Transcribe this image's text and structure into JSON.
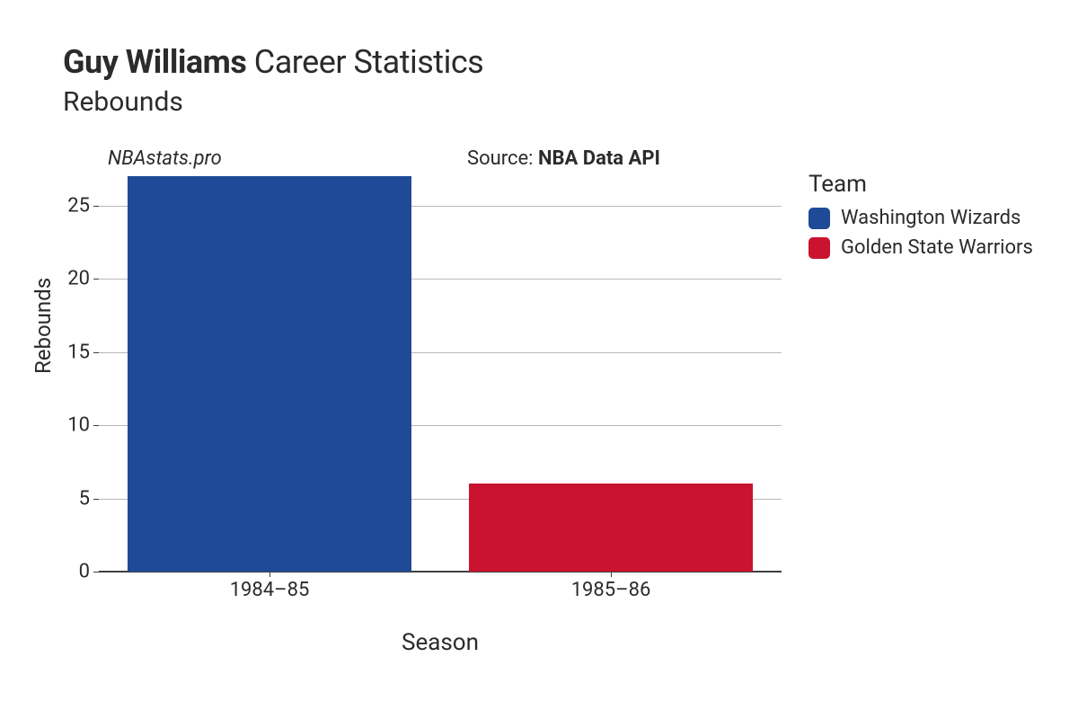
{
  "title": {
    "player": "Guy Williams",
    "suffix": "Career Statistics",
    "metric": "Rebounds"
  },
  "watermark": "NBAstats.pro",
  "source": {
    "prefix": "Source: ",
    "name": "NBA Data API"
  },
  "chart": {
    "type": "bar",
    "ylabel": "Rebounds",
    "xlabel": "Season",
    "ylim": [
      0,
      27
    ],
    "yticks": [
      0,
      5,
      10,
      15,
      20,
      25
    ],
    "categories": [
      "1984–85",
      "1985–86"
    ],
    "values": [
      27,
      6
    ],
    "bar_colors": [
      "#1f4a98",
      "#c9132f"
    ],
    "bar_width": 0.83,
    "background_color": "#ffffff",
    "grid_color": "#b8b8b8",
    "axis_color": "#404040",
    "title_fontsize": 36,
    "subtitle_fontsize": 30,
    "label_fontsize": 24,
    "tick_fontsize": 22
  },
  "legend": {
    "title": "Team",
    "items": [
      {
        "label": "Washington Wizards",
        "color": "#1f4a98"
      },
      {
        "label": "Golden State Warriors",
        "color": "#c9132f"
      }
    ]
  }
}
